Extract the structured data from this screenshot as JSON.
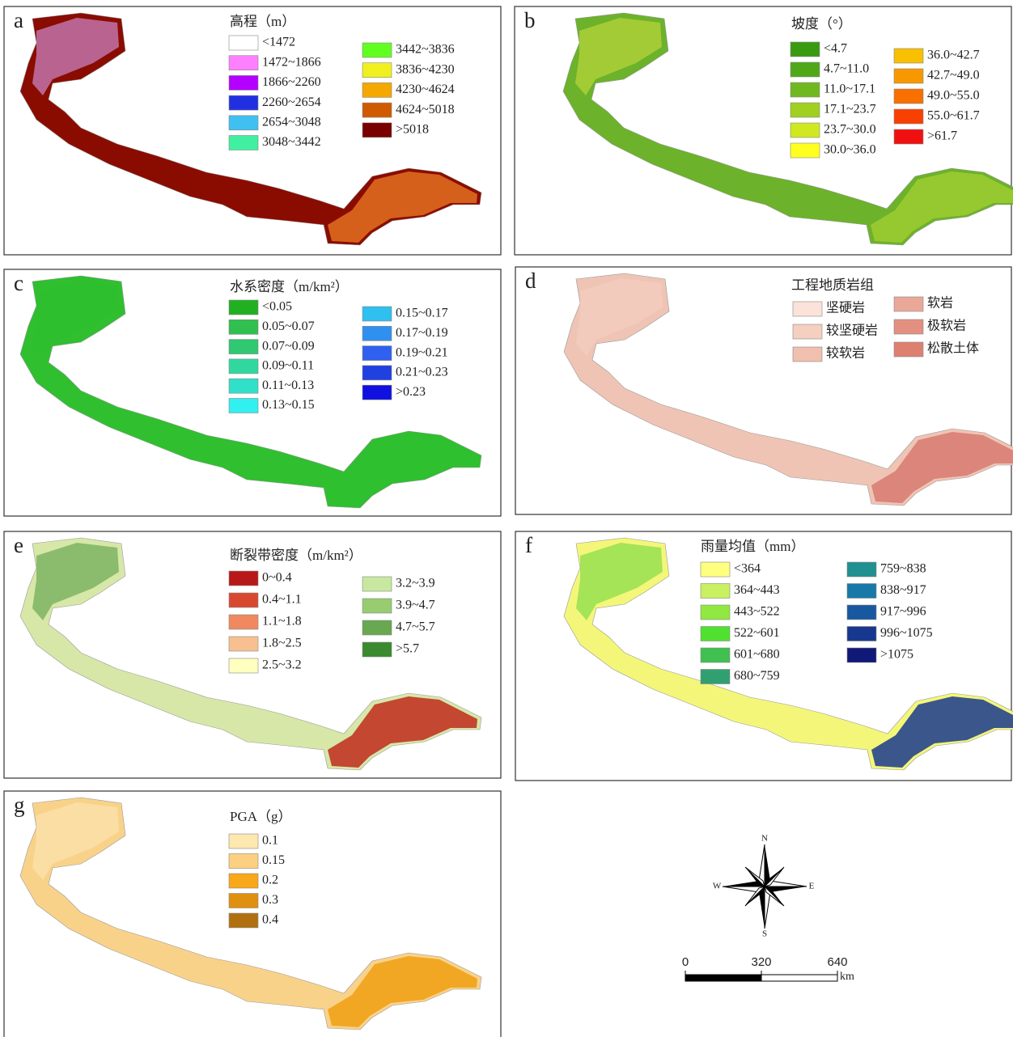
{
  "panels": [
    {
      "letter": "a",
      "title": "高程（m）",
      "legend": [
        {
          "label": "<1472",
          "color": "#ffffff"
        },
        {
          "label": "1472~1866",
          "color": "#ff80ff"
        },
        {
          "label": "1866~2260",
          "color": "#b400ff"
        },
        {
          "label": "2260~2654",
          "color": "#2030e0"
        },
        {
          "label": "2654~3048",
          "color": "#40c0f0"
        },
        {
          "label": "3048~3442",
          "color": "#40f0a0"
        },
        {
          "label": "3442~3836",
          "color": "#60ff20"
        },
        {
          "label": "3836~4230",
          "color": "#f0f020"
        },
        {
          "label": "4230~4624",
          "color": "#f5a800"
        },
        {
          "label": "4624~5018",
          "color": "#d05a00"
        },
        {
          "label": ">5018",
          "color": "#7a0000"
        }
      ]
    },
    {
      "letter": "b",
      "title": "坡度（°）",
      "legend": [
        {
          "label": "<4.7",
          "color": "#3a9a10"
        },
        {
          "label": "4.7~11.0",
          "color": "#50a818"
        },
        {
          "label": "11.0~17.1",
          "color": "#70b820"
        },
        {
          "label": "17.1~23.7",
          "color": "#a0d020"
        },
        {
          "label": "23.7~30.0",
          "color": "#d0e820"
        },
        {
          "label": "30.0~36.0",
          "color": "#ffff20"
        },
        {
          "label": "36.0~42.7",
          "color": "#f8c000"
        },
        {
          "label": "42.7~49.0",
          "color": "#f89800"
        },
        {
          "label": "49.0~55.0",
          "color": "#f87000"
        },
        {
          "label": "55.0~61.7",
          "color": "#f84000"
        },
        {
          "label": ">61.7",
          "color": "#f01010"
        }
      ]
    },
    {
      "letter": "c",
      "title": "水系密度（m/km²）",
      "legend": [
        {
          "label": "<0.05",
          "color": "#20b020"
        },
        {
          "label": "0.05~0.07",
          "color": "#30c050"
        },
        {
          "label": "0.07~0.09",
          "color": "#30c870"
        },
        {
          "label": "0.09~0.11",
          "color": "#30d8a0"
        },
        {
          "label": "0.11~0.13",
          "color": "#30e0c8"
        },
        {
          "label": "0.13~0.15",
          "color": "#30f0f0"
        },
        {
          "label": "0.15~0.17",
          "color": "#30c0f0"
        },
        {
          "label": "0.17~0.19",
          "color": "#3090f0"
        },
        {
          "label": "0.19~0.21",
          "color": "#3060f0"
        },
        {
          "label": "0.21~0.23",
          "color": "#2040e0"
        },
        {
          "label": ">0.23",
          "color": "#1010e0"
        }
      ]
    },
    {
      "letter": "d",
      "title": "工程地质岩组",
      "legend": [
        {
          "label": "坚硬岩",
          "color": "#fbe3da"
        },
        {
          "label": "较坚硬岩",
          "color": "#f5cfc0"
        },
        {
          "label": "较软岩",
          "color": "#f0bfae"
        },
        {
          "label": "软岩",
          "color": "#eaa898"
        },
        {
          "label": "极软岩",
          "color": "#e49080"
        },
        {
          "label": "松散土体",
          "color": "#de8070"
        }
      ]
    },
    {
      "letter": "e",
      "title": "断裂带密度（m/km²）",
      "legend": [
        {
          "label": "0~0.4",
          "color": "#b81818"
        },
        {
          "label": "0.4~1.1",
          "color": "#d84830"
        },
        {
          "label": "1.1~1.8",
          "color": "#f08860"
        },
        {
          "label": "1.8~2.5",
          "color": "#f8c090"
        },
        {
          "label": "2.5~3.2",
          "color": "#ffffc0"
        },
        {
          "label": "3.2~3.9",
          "color": "#c8e8a0"
        },
        {
          "label": "3.9~4.7",
          "color": "#98cc70"
        },
        {
          "label": "4.7~5.7",
          "color": "#68a850"
        },
        {
          "label": ">5.7",
          "color": "#3a8a30"
        }
      ]
    },
    {
      "letter": "f",
      "title": "雨量均值（mm）",
      "legend": [
        {
          "label": "<364",
          "color": "#ffff80"
        },
        {
          "label": "364~443",
          "color": "#c8f060"
        },
        {
          "label": "443~522",
          "color": "#90e840"
        },
        {
          "label": "522~601",
          "color": "#50e030"
        },
        {
          "label": "601~680",
          "color": "#40c050"
        },
        {
          "label": "680~759",
          "color": "#30a070"
        },
        {
          "label": "759~838",
          "color": "#209090"
        },
        {
          "label": "838~917",
          "color": "#1878a8"
        },
        {
          "label": "917~996",
          "color": "#1858a0"
        },
        {
          "label": "996~1075",
          "color": "#183890"
        },
        {
          "label": ">1075",
          "color": "#101878"
        }
      ]
    },
    {
      "letter": "g",
      "title": "PGA（g）",
      "legend": [
        {
          "label": "0.1",
          "color": "#fde8b0"
        },
        {
          "label": "0.15",
          "color": "#fcd080"
        },
        {
          "label": "0.2",
          "color": "#f8a818"
        },
        {
          "label": "0.3",
          "color": "#e09010"
        },
        {
          "label": "0.4",
          "color": "#b07010"
        }
      ]
    }
  ],
  "compass": {
    "north": "N",
    "south": "S",
    "west": "W",
    "east": "E"
  },
  "scale_bar": {
    "ticks": [
      0,
      320,
      640
    ],
    "unit": "km"
  }
}
